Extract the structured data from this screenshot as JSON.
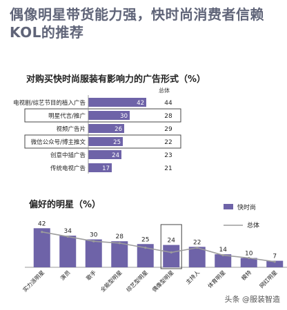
{
  "title": "偶像明星带货能力强，快时尚消费者信赖KOL的推荐",
  "watermark": "头条 @服装智造",
  "colors": {
    "bar": "#6e63a8",
    "line": "#9c9c9c",
    "title": "#5f6478",
    "highlight": "#444444"
  },
  "chart_data": [
    {
      "type": "bar",
      "orientation": "horizontal",
      "title": "对购买快时尚服装有影响力的广告形式（%）",
      "column_header": "总体",
      "categories": [
        "电视剧/综艺节目的植入广告",
        "明星代言/推广",
        "视频广告片",
        "微信公众号/博主推文",
        "创意中插广告",
        "传统电视广告"
      ],
      "series": [
        {
          "values": [
            42,
            30,
            26,
            25,
            24,
            17
          ]
        },
        {
          "name": "总体",
          "values": [
            44,
            28,
            29,
            22,
            23,
            21
          ]
        }
      ],
      "highlighted": [
        "明星代言/推广",
        "微信公众号/博主推文"
      ]
    },
    {
      "type": "bar",
      "orientation": "vertical",
      "title": "偏好的明星（%）",
      "categories": [
        "实力派明星",
        "演员",
        "歌手",
        "全能型明星",
        "综艺型明星",
        "偶像型明星",
        "主持人",
        "体育明星",
        "模特",
        "网红明星"
      ],
      "series": [
        {
          "name": "快时尚",
          "values": [
            42,
            34,
            30,
            28,
            25,
            24,
            22,
            14,
            10,
            7
          ]
        },
        {
          "name": "总体",
          "values": [
            38,
            33,
            28,
            26,
            21,
            16,
            21,
            13,
            10,
            6
          ]
        }
      ],
      "highlighted": [
        "偶像型明星"
      ],
      "legend_position": "top-right"
    }
  ]
}
